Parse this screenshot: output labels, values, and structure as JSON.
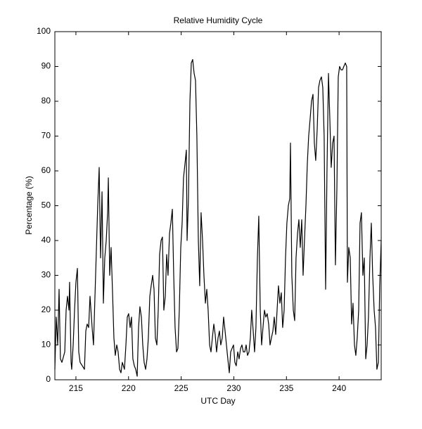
{
  "chart_data": {
    "type": "line",
    "title": "Relative Humidity Cycle",
    "x_label": "UTC Day",
    "y_label": "Percentage (%)",
    "xlim": [
      213,
      244
    ],
    "ylim": [
      0,
      100
    ],
    "xticks": [
      215,
      220,
      225,
      230,
      235,
      240
    ],
    "yticks": [
      0,
      10,
      20,
      30,
      40,
      50,
      60,
      70,
      80,
      90,
      100
    ],
    "grid": false,
    "series": [
      {
        "name": "Relative Humidity",
        "color": "#000000",
        "x": [
          213.0,
          213.13,
          213.27,
          213.4,
          213.53,
          213.67,
          213.94,
          214.07,
          214.2,
          214.34,
          214.4,
          214.54,
          214.6,
          214.74,
          214.87,
          215.0,
          215.14,
          215.27,
          215.4,
          215.61,
          215.81,
          215.94,
          216.07,
          216.21,
          216.34,
          216.54,
          216.67,
          216.87,
          217.07,
          217.21,
          217.34,
          217.48,
          217.61,
          217.74,
          217.88,
          218.01,
          218.08,
          218.21,
          218.34,
          218.48,
          218.61,
          218.74,
          218.88,
          219.01,
          219.15,
          219.28,
          219.41,
          219.61,
          219.75,
          219.88,
          220.01,
          220.15,
          220.28,
          220.41,
          220.55,
          220.68,
          220.82,
          220.95,
          221.08,
          221.22,
          221.35,
          221.48,
          221.62,
          221.75,
          221.88,
          222.02,
          222.15,
          222.29,
          222.42,
          222.55,
          222.69,
          222.82,
          222.95,
          223.09,
          223.22,
          223.35,
          223.49,
          223.62,
          223.75,
          223.89,
          224.02,
          224.16,
          224.29,
          224.42,
          224.56,
          224.69,
          224.82,
          224.96,
          225.09,
          225.22,
          225.36,
          225.49,
          225.56,
          225.69,
          225.83,
          225.96,
          226.09,
          226.23,
          226.36,
          226.49,
          226.63,
          226.76,
          226.89,
          227.03,
          227.16,
          227.3,
          227.43,
          227.56,
          227.7,
          227.83,
          227.96,
          228.1,
          228.23,
          228.36,
          228.5,
          228.63,
          228.76,
          228.9,
          229.03,
          229.17,
          229.3,
          229.43,
          229.57,
          229.7,
          229.83,
          229.97,
          230.1,
          230.23,
          230.37,
          230.5,
          230.64,
          230.77,
          230.9,
          231.04,
          231.17,
          231.3,
          231.44,
          231.57,
          231.7,
          231.84,
          231.97,
          232.1,
          232.24,
          232.37,
          232.51,
          232.64,
          232.77,
          232.91,
          233.04,
          233.17,
          233.31,
          233.44,
          233.57,
          233.71,
          233.84,
          233.98,
          234.11,
          234.24,
          234.38,
          234.51,
          234.64,
          234.78,
          234.91,
          235.04,
          235.18,
          235.31,
          235.38,
          235.51,
          235.65,
          235.78,
          235.91,
          236.05,
          236.18,
          236.31,
          236.45,
          236.58,
          236.71,
          236.85,
          236.98,
          237.11,
          237.25,
          237.38,
          237.52,
          237.65,
          237.78,
          237.92,
          238.05,
          238.18,
          238.32,
          238.45,
          238.58,
          238.72,
          238.85,
          238.99,
          239.12,
          239.25,
          239.39,
          239.52,
          239.65,
          239.79,
          239.92,
          240.05,
          240.19,
          240.32,
          240.45,
          240.59,
          240.72,
          240.79,
          240.92,
          241.06,
          241.19,
          241.32,
          241.46,
          241.59,
          241.72,
          241.86,
          241.99,
          242.12,
          242.26,
          242.39,
          242.53,
          242.66,
          242.79,
          242.93,
          243.06,
          243.19,
          243.33,
          243.46,
          243.59,
          243.73,
          243.86,
          244.0
        ],
        "values": [
          3,
          18,
          10,
          26,
          6,
          5,
          8,
          20,
          24,
          20,
          28,
          5,
          3,
          10,
          20,
          28,
          32,
          8,
          5,
          4,
          3,
          14,
          16,
          15,
          24,
          15,
          10,
          30,
          50,
          61,
          35,
          54,
          22,
          35,
          40,
          48,
          58,
          30,
          38,
          25,
          12,
          7,
          10,
          8,
          3,
          2,
          5,
          3,
          10,
          18,
          19,
          15,
          18,
          6,
          4,
          3,
          1,
          15,
          21,
          18,
          10,
          5,
          3,
          6,
          12,
          24,
          27,
          30,
          26,
          12,
          10,
          20,
          36,
          40,
          41,
          20,
          24,
          36,
          30,
          42,
          45,
          49,
          30,
          15,
          8,
          9,
          20,
          38,
          45,
          58,
          62,
          66,
          40,
          52,
          80,
          91,
          92,
          88,
          86,
          70,
          40,
          27,
          48,
          40,
          30,
          22,
          26,
          20,
          10,
          8,
          12,
          16,
          13,
          8,
          12,
          14,
          10,
          12,
          18,
          14,
          10,
          6,
          2,
          8,
          9,
          10,
          5,
          4,
          8,
          6,
          9,
          10,
          8,
          8,
          10,
          7,
          8,
          12,
          20,
          14,
          8,
          15,
          35,
          47,
          20,
          10,
          15,
          20,
          18,
          19,
          16,
          10,
          12,
          14,
          18,
          13,
          20,
          27,
          22,
          25,
          15,
          20,
          35,
          45,
          50,
          52,
          68,
          30,
          20,
          17,
          35,
          42,
          46,
          38,
          46,
          30,
          40,
          50,
          62,
          70,
          75,
          80,
          82,
          68,
          63,
          72,
          84,
          86,
          87,
          84,
          70,
          26,
          60,
          88,
          75,
          61,
          68,
          70,
          33,
          55,
          87,
          90,
          89,
          89,
          90,
          91,
          90,
          28,
          38,
          35,
          16,
          22,
          10,
          7,
          12,
          20,
          45,
          48,
          30,
          35,
          6,
          10,
          18,
          35,
          45,
          30,
          20,
          15,
          3,
          5,
          27,
          40
        ]
      }
    ]
  }
}
